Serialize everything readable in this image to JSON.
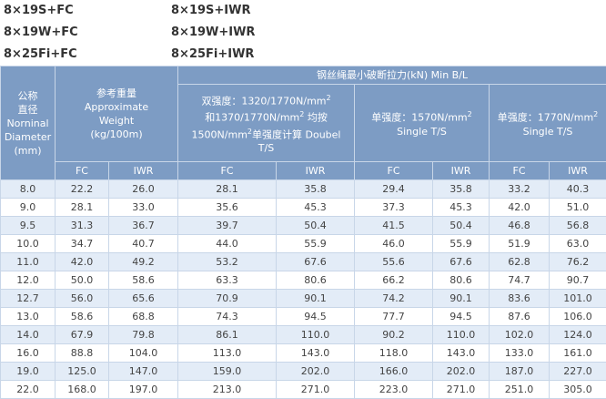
{
  "header": {
    "left": [
      "8×19S+FC",
      "8×19W+FC",
      "8×25Fi+FC"
    ],
    "right": [
      "8×19S+IWR",
      "8×19W+IWR",
      "8×25Fi+IWR"
    ]
  },
  "table": {
    "diameter": [
      "公称",
      "直径",
      "Norninal",
      "Diameter",
      "(mm)"
    ],
    "weight": [
      "参考重量",
      "Approximate",
      "Weight",
      "(kg/100m)"
    ],
    "min_bl": "钢丝绳最小破断拉力(kN) Min B/L",
    "double": [
      "双强度：1320/1770N/mm",
      "2",
      "和1370/1770N/mm",
      "2",
      "均按",
      "1500N/mm",
      "2",
      "单强度计算 Doubel",
      "T/S"
    ],
    "single1": [
      "单强度：1570N/mm",
      "2",
      "Single T/S"
    ],
    "single2": [
      "单强度：1770N/mm",
      "2",
      "Single T/S"
    ],
    "subheads": [
      "FC",
      "IWR",
      "FC",
      "IWR",
      "FC",
      "IWR",
      "FC",
      "IWR"
    ],
    "rows": [
      [
        "8.0",
        "22.2",
        "26.0",
        "28.1",
        "35.8",
        "29.4",
        "35.8",
        "33.2",
        "40.3"
      ],
      [
        "9.0",
        "28.1",
        "33.0",
        "35.6",
        "45.3",
        "37.3",
        "45.3",
        "42.0",
        "51.0"
      ],
      [
        "9.5",
        "31.3",
        "36.7",
        "39.7",
        "50.4",
        "41.5",
        "50.4",
        "46.8",
        "56.8"
      ],
      [
        "10.0",
        "34.7",
        "40.7",
        "44.0",
        "55.9",
        "46.0",
        "55.9",
        "51.9",
        "63.0"
      ],
      [
        "11.0",
        "42.0",
        "49.2",
        "53.2",
        "67.6",
        "55.6",
        "67.6",
        "62.8",
        "76.2"
      ],
      [
        "12.0",
        "50.0",
        "58.6",
        "63.3",
        "80.6",
        "66.2",
        "80.6",
        "74.7",
        "90.7"
      ],
      [
        "12.7",
        "56.0",
        "65.6",
        "70.9",
        "90.1",
        "74.2",
        "90.1",
        "83.6",
        "101.0"
      ],
      [
        "13.0",
        "58.6",
        "68.8",
        "74.3",
        "94.5",
        "77.7",
        "94.5",
        "87.6",
        "106.0"
      ],
      [
        "14.0",
        "67.9",
        "79.8",
        "86.1",
        "110.0",
        "90.2",
        "110.0",
        "102.0",
        "124.0"
      ],
      [
        "16.0",
        "88.8",
        "104.0",
        "113.0",
        "143.0",
        "118.0",
        "143.0",
        "133.0",
        "161.0"
      ],
      [
        "19.0",
        "125.0",
        "147.0",
        "159.0",
        "202.0",
        "166.0",
        "202.0",
        "187.0",
        "227.0"
      ],
      [
        "22.0",
        "168.0",
        "197.0",
        "213.0",
        "271.0",
        "223.0",
        "271.0",
        "251.0",
        "305.0"
      ]
    ]
  }
}
